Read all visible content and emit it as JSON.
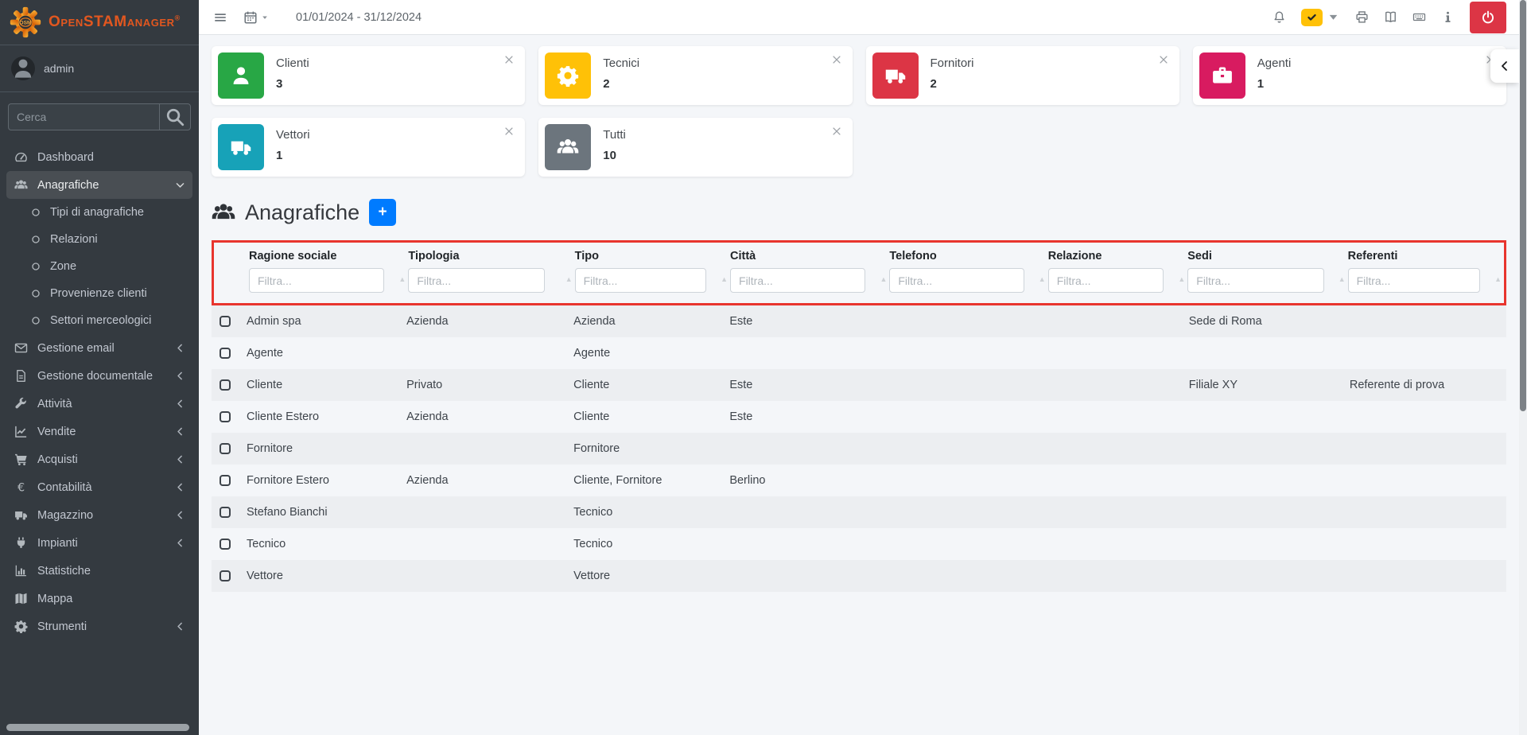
{
  "topbar": {
    "date_range": "01/01/2024 - 31/12/2024"
  },
  "sidebar": {
    "brand": "OpenSTAManager",
    "brand_reg": "®",
    "user": "admin",
    "search_placeholder": "Cerca",
    "items": [
      {
        "label": "Dashboard",
        "icon": "tachometer-icon",
        "chevron": null
      },
      {
        "label": "Anagrafiche",
        "icon": "users-icon",
        "chevron": "down",
        "active": true,
        "children": [
          "Tipi di anagrafiche",
          "Relazioni",
          "Zone",
          "Provenienze clienti",
          "Settori merceologici"
        ]
      },
      {
        "label": "Gestione email",
        "icon": "envelope-icon",
        "chevron": "left"
      },
      {
        "label": "Gestione documentale",
        "icon": "file-icon",
        "chevron": "left"
      },
      {
        "label": "Attività",
        "icon": "wrench-icon",
        "chevron": "left"
      },
      {
        "label": "Vendite",
        "icon": "chart-line-icon",
        "chevron": "left"
      },
      {
        "label": "Acquisti",
        "icon": "cart-icon",
        "chevron": "left"
      },
      {
        "label": "Contabilità",
        "icon": "euro-icon",
        "chevron": "left"
      },
      {
        "label": "Magazzino",
        "icon": "truck-icon",
        "chevron": "left"
      },
      {
        "label": "Impianti",
        "icon": "plug-icon",
        "chevron": "left"
      },
      {
        "label": "Statistiche",
        "icon": "bar-chart-icon",
        "chevron": null
      },
      {
        "label": "Mappa",
        "icon": "map-icon",
        "chevron": null
      },
      {
        "label": "Strumenti",
        "icon": "gear-icon",
        "chevron": "left"
      }
    ]
  },
  "cards": [
    {
      "label": "Clienti",
      "count": "3",
      "color": "#28a745",
      "icon": "user-icon"
    },
    {
      "label": "Tecnici",
      "count": "2",
      "color": "#ffc107",
      "icon": "gear-icon"
    },
    {
      "label": "Fornitori",
      "count": "2",
      "color": "#dc3545",
      "icon": "truck-icon"
    },
    {
      "label": "Agenti",
      "count": "1",
      "color": "#d81b60",
      "icon": "briefcase-icon"
    },
    {
      "label": "Vettori",
      "count": "1",
      "color": "#17a2b8",
      "icon": "truck-icon"
    },
    {
      "label": "Tutti",
      "count": "10",
      "color": "#6c757d",
      "icon": "users-icon"
    }
  ],
  "page": {
    "title": "Anagrafiche",
    "add_button": "+"
  },
  "table": {
    "filter_placeholder": "Filtra...",
    "columns": [
      "Ragione sociale",
      "Tipologia",
      "Tipo",
      "Città",
      "Telefono",
      "Relazione",
      "Sedi",
      "Referenti"
    ],
    "rows": [
      [
        "Admin spa",
        "Azienda",
        "Azienda",
        "Este",
        "",
        "",
        "Sede di Roma",
        ""
      ],
      [
        "Agente",
        "",
        "Agente",
        "",
        "",
        "",
        "",
        ""
      ],
      [
        "Cliente",
        "Privato",
        "Cliente",
        "Este",
        "",
        "",
        "Filiale XY",
        "Referente di prova"
      ],
      [
        "Cliente Estero",
        "Azienda",
        "Cliente",
        "Este",
        "",
        "",
        "",
        ""
      ],
      [
        "Fornitore",
        "",
        "Fornitore",
        "",
        "",
        "",
        "",
        ""
      ],
      [
        "Fornitore Estero",
        "Azienda",
        "Cliente, Fornitore",
        "Berlino",
        "",
        "",
        "",
        ""
      ],
      [
        "Stefano Bianchi",
        "",
        "Tecnico",
        "",
        "",
        "",
        "",
        ""
      ],
      [
        "Tecnico",
        "",
        "Tecnico",
        "",
        "",
        "",
        "",
        ""
      ],
      [
        "Vettore",
        "",
        "Vettore",
        "",
        "",
        "",
        "",
        ""
      ]
    ]
  },
  "colors": {
    "brand_orange": "#e2571f",
    "primary_blue": "#007bff",
    "danger_red": "#dc3545",
    "highlight_red": "#e8352e",
    "sidebar_bg": "#343a40"
  }
}
